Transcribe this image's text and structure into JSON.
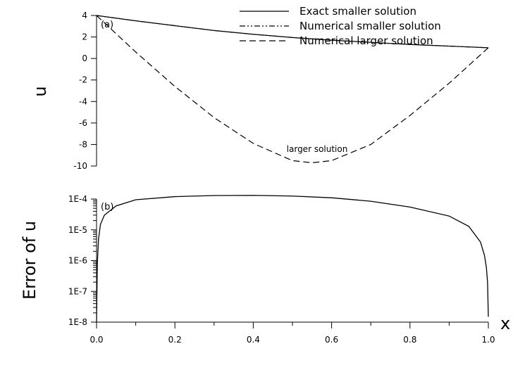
{
  "chart_data": [
    {
      "panel": "(a)",
      "type": "line",
      "ylabel": "u",
      "xlim": [
        0,
        1
      ],
      "ylim": [
        -10,
        4
      ],
      "yticks": [
        4,
        2,
        0,
        -2,
        -4,
        -6,
        -8,
        -10
      ],
      "grid": false,
      "legend": {
        "placement": "top-right",
        "entries": [
          {
            "label": "Exact smaller solution",
            "style": "solid"
          },
          {
            "label": "Numerical smaller solution",
            "style": "dash-dot-dot"
          },
          {
            "label": "Numerical larger solution",
            "style": "dashed"
          }
        ]
      },
      "annotation": "larger solution",
      "series": [
        {
          "name": "Exact smaller solution",
          "x": [
            0,
            0.1,
            0.2,
            0.3,
            0.4,
            0.5,
            0.6,
            0.7,
            0.8,
            0.9,
            1.0
          ],
          "values": [
            4.0,
            3.5,
            3.05,
            2.6,
            2.25,
            1.95,
            1.7,
            1.5,
            1.3,
            1.15,
            1.0
          ]
        },
        {
          "name": "Numerical smaller solution",
          "x": [
            0,
            0.1,
            0.2,
            0.3,
            0.4,
            0.5,
            0.6,
            0.7,
            0.8,
            0.9,
            1.0
          ],
          "values": [
            4.0,
            3.5,
            3.05,
            2.6,
            2.25,
            1.95,
            1.7,
            1.5,
            1.3,
            1.15,
            1.0
          ]
        },
        {
          "name": "Numerical larger solution",
          "x": [
            0,
            0.1,
            0.2,
            0.3,
            0.4,
            0.5,
            0.55,
            0.6,
            0.7,
            0.8,
            0.9,
            1.0
          ],
          "values": [
            4.0,
            0.6,
            -2.6,
            -5.5,
            -7.9,
            -9.5,
            -9.7,
            -9.5,
            -8.0,
            -5.3,
            -2.3,
            1.0
          ]
        }
      ]
    },
    {
      "panel": "(b)",
      "type": "line",
      "ylabel": "Error of u",
      "xlabel": "x",
      "xlim": [
        0,
        1
      ],
      "xticks": [
        "0.0",
        "0.2",
        "0.4",
        "0.6",
        "0.8",
        "1.0"
      ],
      "yscale": "log",
      "ylim": [
        1e-08,
        0.0001
      ],
      "yticks": [
        "1E-4",
        "1E-5",
        "1E-6",
        "1E-7",
        "1E-8"
      ],
      "grid": false,
      "series": [
        {
          "name": "",
          "x": [
            0.0,
            0.002,
            0.005,
            0.01,
            0.02,
            0.05,
            0.1,
            0.2,
            0.3,
            0.4,
            0.5,
            0.6,
            0.7,
            0.8,
            0.9,
            0.95,
            0.98,
            0.99,
            0.995,
            0.998,
            1.0
          ],
          "values": [
            1e-08,
            8e-07,
            5e-06,
            1.5e-05,
            3e-05,
            6e-05,
            9.5e-05,
            0.00012,
            0.00013,
            0.000132,
            0.000125,
            0.00011,
            8.5e-05,
            5.5e-05,
            2.8e-05,
            1.3e-05,
            4e-06,
            1.5e-06,
            6e-07,
            2e-07,
            1.5e-08
          ]
        }
      ]
    }
  ]
}
